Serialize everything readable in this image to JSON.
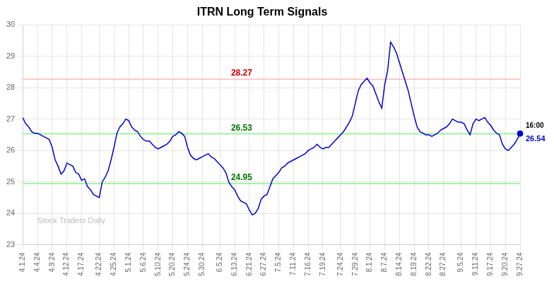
{
  "chart_data": {
    "type": "line",
    "title": "ITRN Long Term Signals",
    "categories": [
      "4.1.24",
      null,
      null,
      null,
      null,
      "4.4.24",
      null,
      null,
      null,
      null,
      "4.9.24",
      null,
      null,
      null,
      null,
      "4.12.24",
      null,
      null,
      null,
      null,
      "4.17.24",
      null,
      null,
      null,
      null,
      null,
      "4.22.24",
      null,
      null,
      null,
      null,
      "4.25.24",
      null,
      null,
      null,
      null,
      "5.1.24",
      null,
      null,
      null,
      null,
      "5.6.24",
      null,
      null,
      null,
      null,
      "5.10.24",
      null,
      null,
      null,
      null,
      "5.20.24",
      null,
      null,
      null,
      null,
      "5.24.24",
      null,
      null,
      null,
      null,
      "5.30.24",
      null,
      null,
      null,
      null,
      null,
      "6.5.24",
      null,
      null,
      null,
      null,
      "6.13.24",
      null,
      null,
      null,
      null,
      "6.21.24",
      null,
      null,
      null,
      null,
      "6.27.24",
      null,
      null,
      null,
      null,
      "7.5.24",
      null,
      null,
      null,
      null,
      "7.11.24",
      null,
      null,
      null,
      null,
      "7.16.24",
      null,
      null,
      null,
      null,
      "7.19.24",
      null,
      null,
      null,
      null,
      null,
      "7.24.24",
      null,
      null,
      null,
      null,
      "7.29.24",
      null,
      null,
      null,
      null,
      "8.1.24",
      null,
      null,
      null,
      null,
      "8.7.24",
      null,
      null,
      null,
      null,
      "8.14.24",
      null,
      null,
      null,
      null,
      "8.19.24",
      null,
      null,
      null,
      null,
      "8.22.24",
      null,
      null,
      null,
      null,
      "8.27.24",
      null,
      null,
      null,
      null,
      null,
      "9.5.24",
      null,
      null,
      null,
      null,
      "9.11.24",
      null,
      null,
      null,
      null,
      "9.17.24",
      null,
      null,
      null,
      null,
      "9.20.24",
      null,
      null,
      null,
      null,
      "9.27.24"
    ],
    "color": "#0000cc",
    "values": [
      27.05,
      26.85,
      26.75,
      26.6,
      26.55,
      26.55,
      26.5,
      26.45,
      26.4,
      26.35,
      26.1,
      25.7,
      25.5,
      25.25,
      25.35,
      25.6,
      25.55,
      25.5,
      25.3,
      25.25,
      25.05,
      25.1,
      24.85,
      24.75,
      24.6,
      24.55,
      24.5,
      25.0,
      25.15,
      25.35,
      25.7,
      26.1,
      26.55,
      26.75,
      26.85,
      27.0,
      26.95,
      26.75,
      26.65,
      26.6,
      26.45,
      26.35,
      26.3,
      26.3,
      26.2,
      26.1,
      26.05,
      26.1,
      26.15,
      26.2,
      26.3,
      26.45,
      26.5,
      26.6,
      26.55,
      26.45,
      26.1,
      25.85,
      25.75,
      25.7,
      25.75,
      25.8,
      25.85,
      25.9,
      25.8,
      25.75,
      25.65,
      25.55,
      25.45,
      25.3,
      25.0,
      24.85,
      24.75,
      24.55,
      24.4,
      24.35,
      24.3,
      24.1,
      23.95,
      24.0,
      24.15,
      24.45,
      24.55,
      24.6,
      24.85,
      25.1,
      25.2,
      25.3,
      25.45,
      25.5,
      25.6,
      25.65,
      25.7,
      25.75,
      25.8,
      25.85,
      25.9,
      26.0,
      26.05,
      26.1,
      26.2,
      26.1,
      26.05,
      26.1,
      26.1,
      26.2,
      26.3,
      26.4,
      26.5,
      26.6,
      26.75,
      26.9,
      27.1,
      27.5,
      27.9,
      28.1,
      28.2,
      28.3,
      28.15,
      28.05,
      27.8,
      27.55,
      27.35,
      28.1,
      28.55,
      29.45,
      29.3,
      29.1,
      28.8,
      28.5,
      28.2,
      27.9,
      27.5,
      27.1,
      26.75,
      26.6,
      26.55,
      26.5,
      26.5,
      26.45,
      26.5,
      26.55,
      26.65,
      26.7,
      26.75,
      26.85,
      27.0,
      26.95,
      26.9,
      26.9,
      26.85,
      26.65,
      26.5,
      26.85,
      27.0,
      26.95,
      27.0,
      27.05,
      26.9,
      26.8,
      26.65,
      26.55,
      26.5,
      26.2,
      26.05,
      26.0,
      26.1,
      26.2,
      26.35,
      26.54
    ],
    "hlines": [
      {
        "value": 28.27,
        "label": "28.27",
        "color": "#ffbbbb",
        "text_color": "#cc0000"
      },
      {
        "value": 26.53,
        "label": "26.53",
        "color": "#88ee88",
        "text_color": "#007700"
      },
      {
        "value": 24.95,
        "label": "24.95",
        "color": "#88ee88",
        "text_color": "#007700"
      }
    ],
    "end_label": {
      "time": "16:00",
      "value": 26.54,
      "label": "26.54",
      "color": "#0000cc"
    },
    "annotations": [
      {
        "text": "Stock Traders Daily",
        "color": "#bbbbbb"
      }
    ],
    "ylim": [
      23,
      30
    ],
    "yticks": [
      23,
      24,
      25,
      26,
      27,
      28,
      29,
      30
    ],
    "grid": true
  }
}
